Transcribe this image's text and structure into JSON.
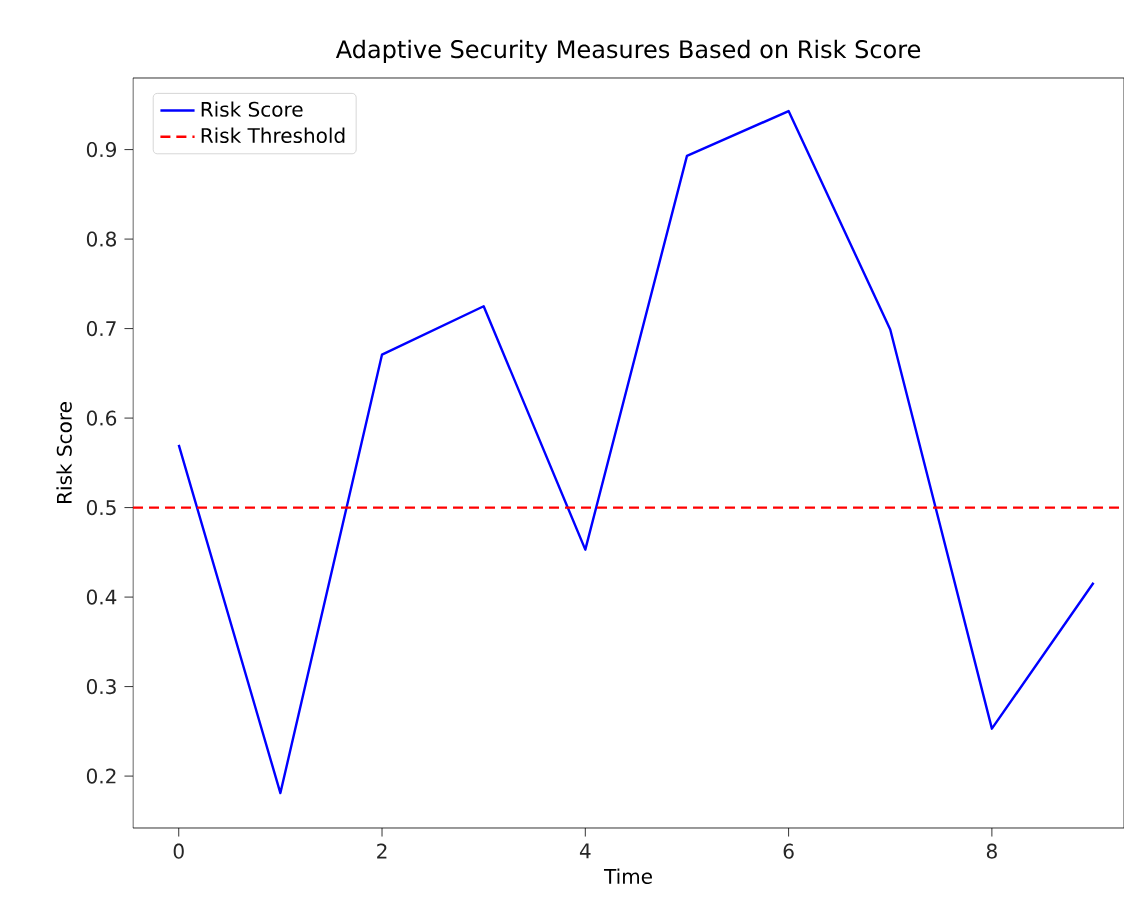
{
  "chart_data": {
    "type": "line",
    "title": "Adaptive Security Measures Based on Risk Score",
    "xlabel": "Time",
    "ylabel": "Risk Score",
    "x": [
      0,
      1,
      2,
      3,
      4,
      5,
      6,
      7,
      8,
      9
    ],
    "series": [
      {
        "name": "Risk Score",
        "color": "#0000ff",
        "values": [
          0.57,
          0.181,
          0.671,
          0.725,
          0.453,
          0.893,
          0.943,
          0.699,
          0.253,
          0.416
        ]
      }
    ],
    "ref_lines": [
      {
        "axis": "y",
        "value": 0.5,
        "label": "Risk Threshold",
        "color": "#ff0000",
        "line_style": "dashed"
      }
    ],
    "xlim": [
      -0.45,
      9.3
    ],
    "ylim": [
      0.142,
      0.98
    ],
    "xticks": [
      0,
      2,
      4,
      6,
      8
    ],
    "yticks": [
      0.2,
      0.3,
      0.4,
      0.5,
      0.6,
      0.7,
      0.8,
      0.9
    ],
    "legend": "top left",
    "grid": false,
    "marker": "none",
    "line_style": "solid"
  }
}
